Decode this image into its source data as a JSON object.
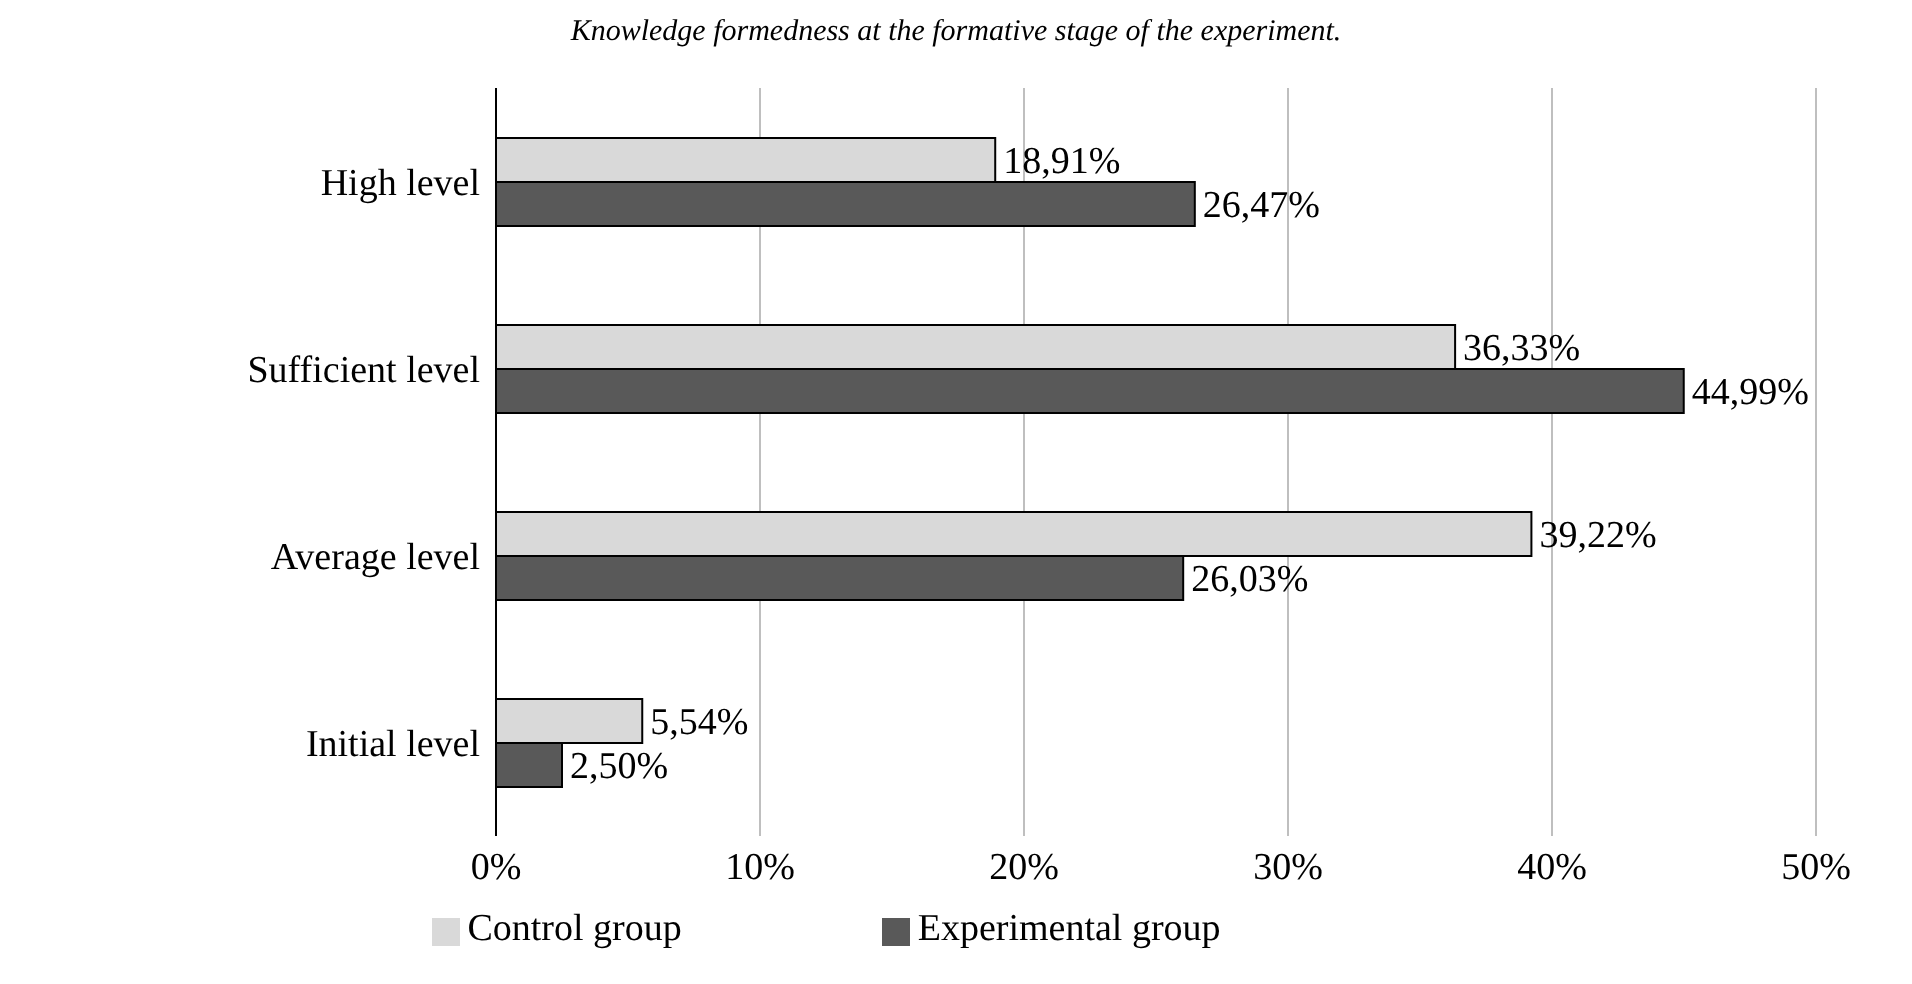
{
  "chart_data": {
    "type": "bar",
    "orientation": "horizontal",
    "title": "Knowledge formedness at the formative stage of the experiment.",
    "categories": [
      "High level",
      "Sufficient level",
      "Average level",
      "Initial level"
    ],
    "series": [
      {
        "name": "Control group",
        "color": "#d9d9d9",
        "values": [
          18.91,
          36.33,
          39.22,
          5.54
        ],
        "value_labels": [
          "18,91%",
          "36,33%",
          "39,22%",
          "5,54%"
        ]
      },
      {
        "name": "Experimental group",
        "color": "#595959",
        "values": [
          26.47,
          44.99,
          26.03,
          2.5
        ],
        "value_labels": [
          "26,47%",
          "44,99%",
          "26,03%",
          "2,50%"
        ]
      }
    ],
    "xlim": [
      0,
      50
    ],
    "xticks": [
      {
        "value": 0,
        "label": "0%"
      },
      {
        "value": 10,
        "label": "10%"
      },
      {
        "value": 20,
        "label": "20%"
      },
      {
        "value": 30,
        "label": "30%"
      },
      {
        "value": 40,
        "label": "40%"
      },
      {
        "value": 50,
        "label": "50%"
      }
    ],
    "grid": "x",
    "legend": "bottom"
  }
}
